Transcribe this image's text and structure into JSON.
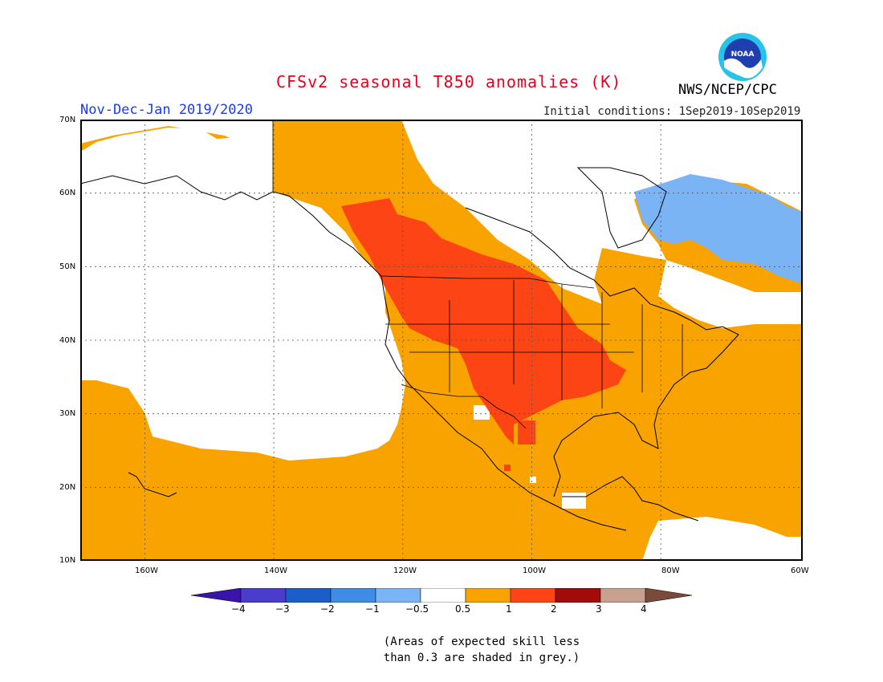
{
  "header": {
    "title": "CFSv2 seasonal T850 anomalies (K)",
    "period": "Nov-Dec-Jan 2019/2020",
    "initial_conditions": "Initial conditions: 1Sep2019-10Sep2019",
    "agency": "NWS/NCEP/CPC",
    "logo_text": "NOAA"
  },
  "map": {
    "projection": "equirectangular",
    "lon_range": [
      -172,
      -60
    ],
    "lat_range": [
      10,
      70
    ],
    "grid": true,
    "lat_ticks": [
      {
        "value": 70,
        "label": "70N"
      },
      {
        "value": 60,
        "label": "60N"
      },
      {
        "value": 50,
        "label": "50N"
      },
      {
        "value": 40,
        "label": "40N"
      },
      {
        "value": 30,
        "label": "30N"
      },
      {
        "value": 20,
        "label": "20N"
      },
      {
        "value": 10,
        "label": "10N"
      }
    ],
    "lon_ticks": [
      {
        "value": -160,
        "label": "160W"
      },
      {
        "value": -140,
        "label": "140W"
      },
      {
        "value": -120,
        "label": "120W"
      },
      {
        "value": -100,
        "label": "100W"
      },
      {
        "value": -80,
        "label": "80W"
      },
      {
        "value": -60,
        "label": "60W"
      }
    ],
    "anomaly_regions": [
      {
        "name": "warm 0.5-1",
        "color": "#f9a300",
        "level": "0.5-1"
      },
      {
        "name": "warm 1-2",
        "color": "#fc4414",
        "level": "1-2"
      },
      {
        "name": "cool -1--0.5",
        "color": "#7ab4f5",
        "level": "-1--0.5"
      }
    ]
  },
  "legend": {
    "colors": [
      "#3a14a8",
      "#4a3ccc",
      "#1c5ec9",
      "#3e8ce8",
      "#7ab4f5",
      "#ffffff",
      "#f9a300",
      "#fc4414",
      "#a30a0a",
      "#c8a090",
      "#7a4a3a"
    ],
    "labels": [
      "−4",
      "−3",
      "−2",
      "−1",
      "−0.5",
      "0.5",
      "1",
      "2",
      "3",
      "4"
    ]
  },
  "footnote": {
    "line1": "(Areas of expected skill less",
    "line2": "than 0.3 are shaded in grey.)"
  }
}
